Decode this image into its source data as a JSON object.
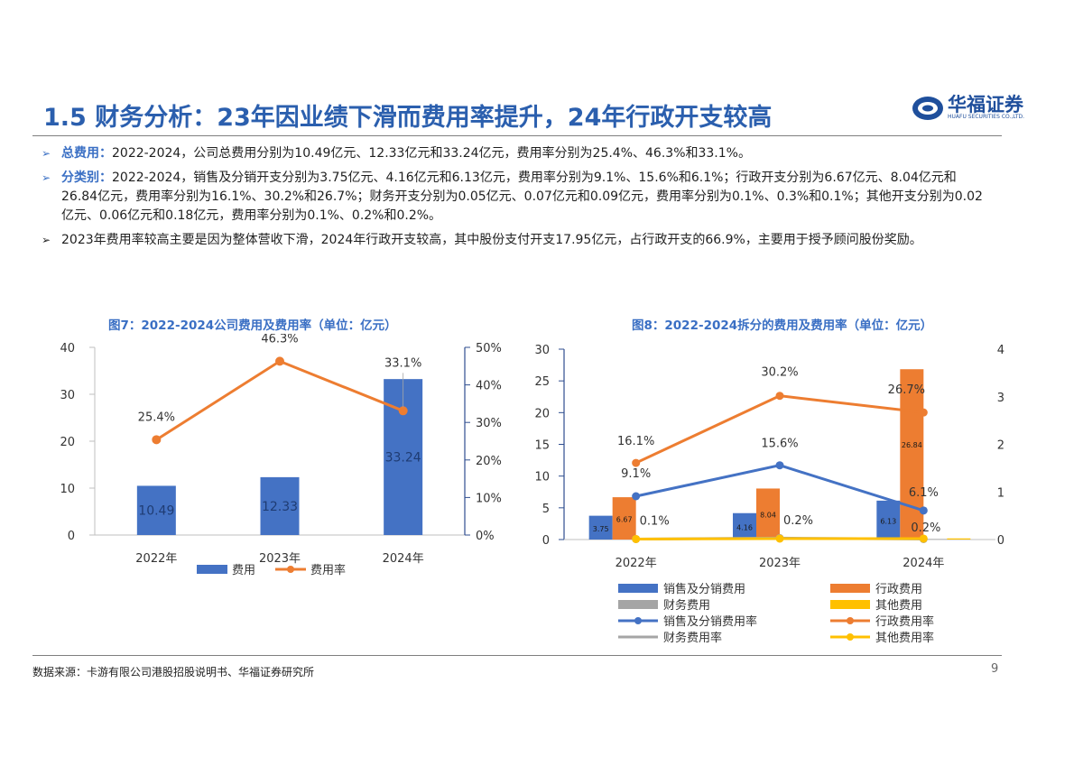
{
  "header": {
    "title": "1.5 财务分析：23年因业绩下滑而费用率提升，24年行政开支较高",
    "logo_text": "华福证券",
    "logo_sub": "HUAFU SECURITIES CO.,LTD."
  },
  "bullets": [
    {
      "lead": "总费用：",
      "text": "2022-2024，公司总费用分别为10.49亿元、12.33亿元和33.24亿元，费用率分别为25.4%、46.3%和33.1%。"
    },
    {
      "lead": "分类别：",
      "text": "2022-2024，销售及分销开支分别为3.75亿元、4.16亿元和6.13亿元，费用率分别为9.1%、15.6%和6.1%；行政开支分别为6.67亿元、8.04亿元和26.84亿元，费用率分别为16.1%、30.2%和26.7%；财务开支分别为0.05亿元、0.07亿元和0.09亿元，费用率分别为0.1%、0.3%和0.1%；其他开支分别为0.02亿元、0.06亿元和0.18亿元，费用率分别为0.1%、0.2%和0.2%。"
    },
    {
      "lead": "",
      "text": "2023年费用率较高主要是因为整体营收下滑，2024年行政开支较高，其中股份支付开支17.95亿元，占行政开支的66.9%，主要用于授予顾问股份奖励。"
    }
  ],
  "charts": {
    "left_title": "图7：2022-2024公司费用及费用率（单位：亿元）",
    "right_title": "图8：2022-2024拆分的费用及费用率（单位：亿元）"
  },
  "chart_data": [
    {
      "type": "bar",
      "title": "图7：2022-2024公司费用及费用率（单位：亿元）",
      "categories": [
        "2022年",
        "2023年",
        "2024年"
      ],
      "series": [
        {
          "name": "费用",
          "type": "bar",
          "axis": "left",
          "values": [
            10.49,
            12.33,
            33.24
          ],
          "labels": [
            "10.49",
            "12.33",
            "33.24"
          ],
          "color": "#4472c4"
        },
        {
          "name": "费用率",
          "type": "line",
          "axis": "right",
          "values": [
            25.4,
            46.3,
            33.1
          ],
          "labels": [
            "25.4%",
            "46.3%",
            "33.1%"
          ],
          "color": "#ed7d31"
        }
      ],
      "left_ylim": [
        0,
        40
      ],
      "left_ticks": [
        "0",
        "10",
        "20",
        "30",
        "40"
      ],
      "right_ylim": [
        0,
        50
      ],
      "right_ticks": [
        "0%",
        "10%",
        "20%",
        "30%",
        "40%",
        "50%"
      ],
      "legend": "bottom"
    },
    {
      "type": "bar",
      "title": "图8：2022-2024拆分的费用及费用率（单位：亿元）",
      "categories": [
        "2022年",
        "2023年",
        "2024年"
      ],
      "bar_series": [
        {
          "name": "销售及分销费用",
          "values": [
            3.75,
            4.16,
            6.13
          ],
          "labels": [
            "3.75",
            "4.16",
            "6.13"
          ],
          "color": "#4472c4"
        },
        {
          "name": "行政费用",
          "values": [
            6.67,
            8.04,
            26.84
          ],
          "labels": [
            "6.67",
            "8.04",
            "26.84"
          ],
          "color": "#ed7d31"
        },
        {
          "name": "财务费用",
          "values": [
            0.05,
            0.07,
            0.09
          ],
          "color": "#a5a5a5"
        },
        {
          "name": "其他费用",
          "values": [
            0.02,
            0.06,
            0.18
          ],
          "color": "#ffc000"
        }
      ],
      "line_series": [
        {
          "name": "销售及分销费用率",
          "values": [
            9.1,
            15.6,
            6.1
          ],
          "labels": [
            "9.1%",
            "15.6%",
            "6.1%"
          ],
          "color": "#4472c4"
        },
        {
          "name": "行政费用率",
          "values": [
            16.1,
            30.2,
            26.7
          ],
          "labels": [
            "16.1%",
            "30.2%",
            "26.7%"
          ],
          "color": "#ed7d31"
        },
        {
          "name": "财务费用率",
          "values": [
            0.1,
            0.3,
            0.1
          ],
          "color": "#a5a5a5"
        },
        {
          "name": "其他费用率",
          "values": [
            0.1,
            0.2,
            0.2
          ],
          "labels": [
            "0.1%",
            "0.2%",
            "0.2%"
          ],
          "color": "#ffc000"
        }
      ],
      "left_ylim": [
        0,
        30
      ],
      "left_ticks": [
        "0",
        "5",
        "10",
        "15",
        "20",
        "25",
        "30"
      ],
      "right_ylim": [
        0,
        4
      ],
      "right_ticks": [
        "0",
        "1",
        "2",
        "3",
        "4"
      ],
      "legend": "bottom"
    }
  ],
  "footer": {
    "source": "数据来源：卡游有限公司港股招股说明书、华福证券研究所",
    "page": "9"
  }
}
